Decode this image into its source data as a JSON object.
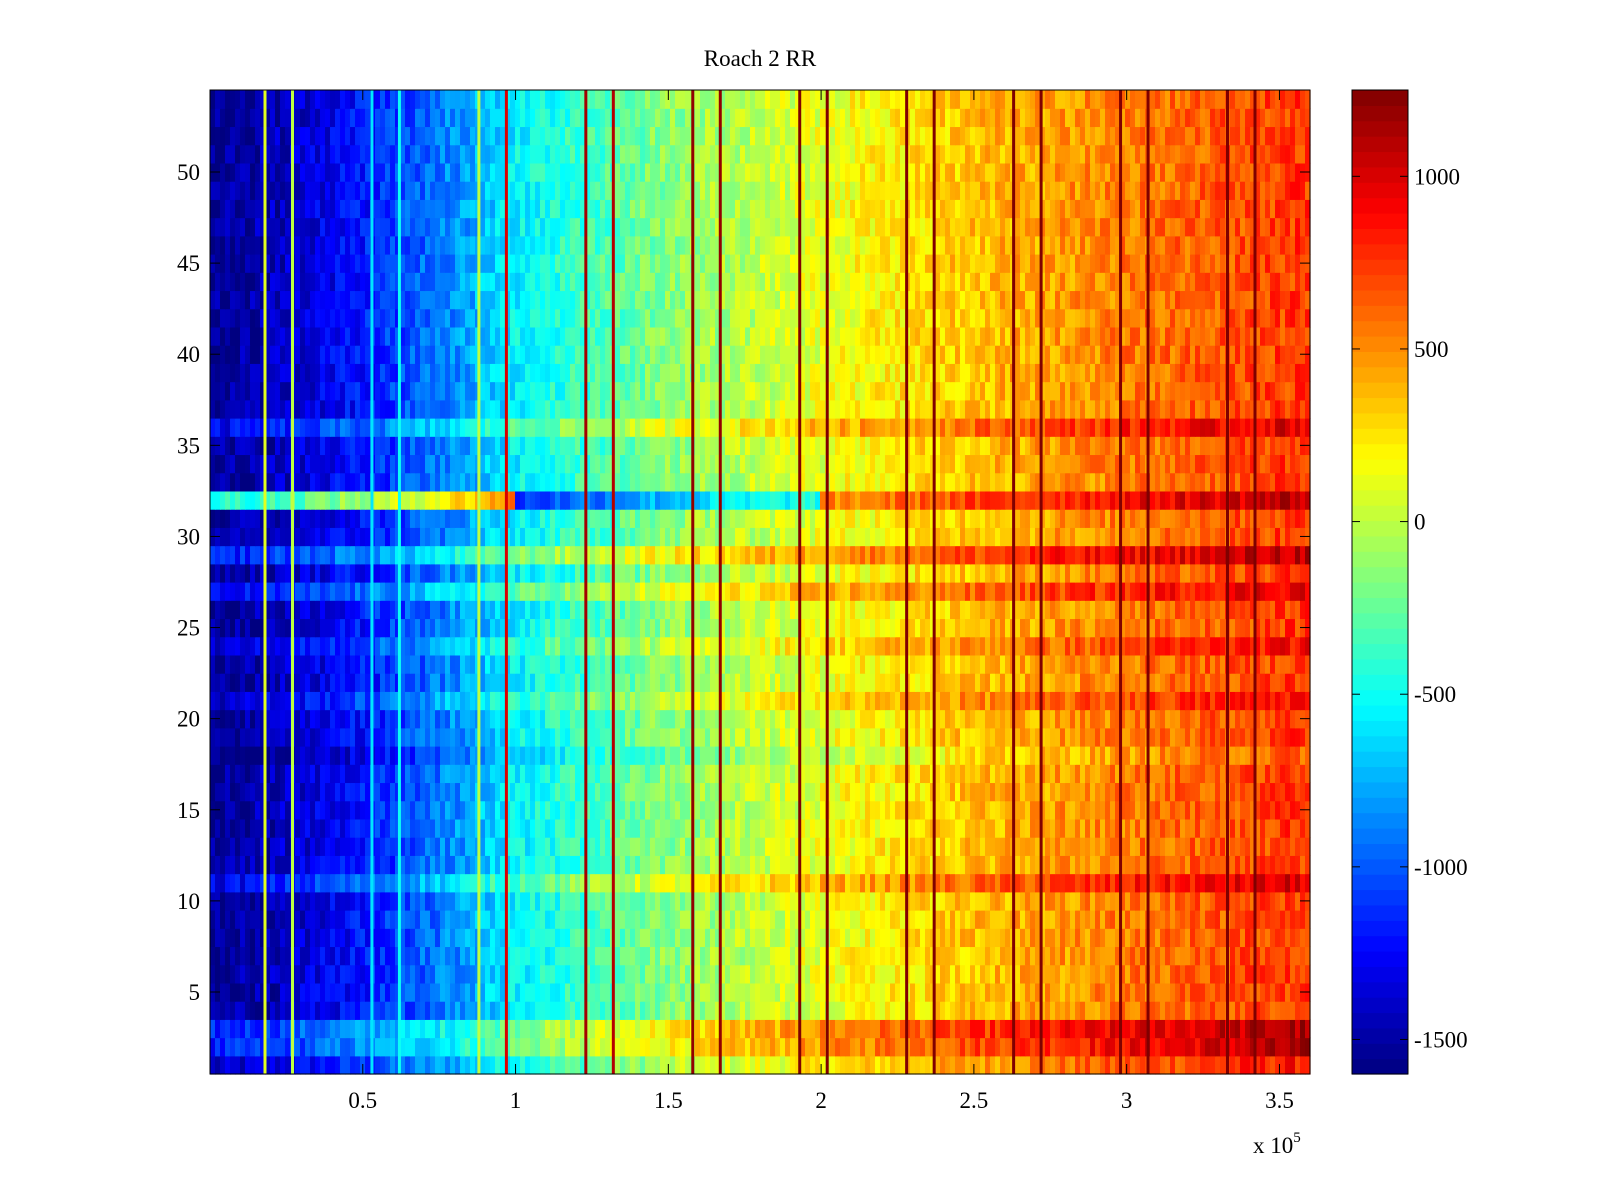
{
  "chart_data": {
    "type": "heatmap",
    "title": "Roach 2 RR",
    "xlabel": "",
    "ylabel": "",
    "x_exponent_label": "x 10",
    "x_exponent_power": "5",
    "xlim": [
      0,
      360000
    ],
    "ylim": [
      0.5,
      54.5
    ],
    "x_ticks": [
      50000,
      100000,
      150000,
      200000,
      250000,
      300000,
      350000
    ],
    "x_tick_labels": [
      "0.5",
      "1",
      "1.5",
      "2",
      "2.5",
      "3",
      "3.5"
    ],
    "y_ticks": [
      5,
      10,
      15,
      20,
      25,
      30,
      35,
      40,
      45,
      50
    ],
    "y_tick_labels": [
      "5",
      "10",
      "15",
      "20",
      "25",
      "30",
      "35",
      "40",
      "45",
      "50"
    ],
    "rows": 54,
    "colormap": "jet",
    "clim": [
      -1600,
      1250
    ],
    "colorbar": {
      "ticks": [
        -1500,
        -1000,
        -500,
        0,
        500,
        1000
      ],
      "tick_labels": [
        "-1500",
        "-1000",
        "-500",
        "0",
        "500",
        "1000"
      ]
    },
    "trend": {
      "x": [
        0,
        20000,
        50000,
        80000,
        100000,
        150000,
        200000,
        250000,
        300000,
        360000
      ],
      "value": [
        -1550,
        -1450,
        -1200,
        -850,
        -550,
        -150,
        120,
        350,
        550,
        750
      ]
    },
    "vertical_lines": [
      {
        "x": 18000,
        "value": 100
      },
      {
        "x": 27000,
        "value": 0
      },
      {
        "x": 53000,
        "value": -600
      },
      {
        "x": 62000,
        "value": -500
      },
      {
        "x": 88000,
        "value": 0
      },
      {
        "x": 97000,
        "value": 1000
      },
      {
        "x": 123000,
        "value": 1150
      },
      {
        "x": 132000,
        "value": 1100
      },
      {
        "x": 158000,
        "value": 1200
      },
      {
        "x": 167000,
        "value": 1200
      },
      {
        "x": 193000,
        "value": 1250
      },
      {
        "x": 202000,
        "value": 1250
      },
      {
        "x": 228000,
        "value": 1250
      },
      {
        "x": 237000,
        "value": 1250
      },
      {
        "x": 263000,
        "value": 1250
      },
      {
        "x": 272000,
        "value": 1250
      },
      {
        "x": 298000,
        "value": 1250
      },
      {
        "x": 307000,
        "value": 1250
      },
      {
        "x": 333000,
        "value": 1250
      },
      {
        "x": 342000,
        "value": 1250
      }
    ],
    "row_offsets": [
      {
        "row": 1,
        "offset": 100
      },
      {
        "row": 2,
        "offset": 350
      },
      {
        "row": 3,
        "offset": 380
      },
      {
        "row": 11,
        "offset": 250
      },
      {
        "row": 18,
        "offset": -100
      },
      {
        "row": 21,
        "offset": 150
      },
      {
        "row": 24,
        "offset": 150
      },
      {
        "row": 27,
        "offset": 250
      },
      {
        "row": 29,
        "offset": 350
      },
      {
        "row": 32,
        "offset_by_range": [
          {
            "x_from": 0,
            "x_to": 100000,
            "offset": 1100
          },
          {
            "x_from": 100000,
            "x_to": 200000,
            "offset": -550
          },
          {
            "x_from": 200000,
            "x_to": 360000,
            "offset": 350
          }
        ]
      },
      {
        "row": 36,
        "offset": 250
      }
    ]
  }
}
